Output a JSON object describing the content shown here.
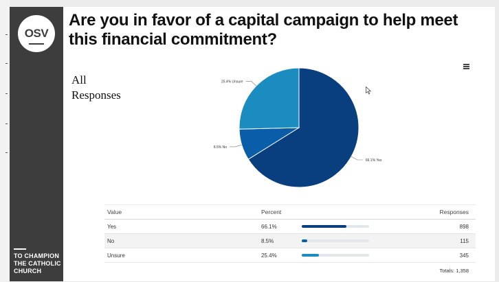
{
  "title": "Are you in favor of a capital campaign to help meet this financial commitment?",
  "subtitle_line1": "All",
  "subtitle_line2": "Responses",
  "logo": {
    "text": "OSV"
  },
  "tagline": [
    "TO CHAMPION",
    "THE CATHOLIC",
    "CHURCH"
  ],
  "icons": {
    "menu": "hamburger-menu-icon",
    "cursor": "mouse-pointer-icon"
  },
  "colors": {
    "sidebar": "#3d3d3d",
    "yes": "#0a3f7f",
    "no": "#0a5da8",
    "unsure": "#1a8cc0",
    "bar_track": "#e3e6ea"
  },
  "chart_data": {
    "type": "pie",
    "slices": [
      {
        "label": "Yes",
        "value": 66.1,
        "data_label": "66.1% Yes",
        "color": "#0a3f7f"
      },
      {
        "label": "No",
        "value": 8.5,
        "data_label": "8.5% No",
        "color": "#0a5da8"
      },
      {
        "label": "Unsure",
        "value": 25.4,
        "data_label": "25.4% Unsure",
        "color": "#1a8cc0"
      }
    ]
  },
  "table": {
    "headers": {
      "value": "Value",
      "percent": "Percent",
      "responses": "Responses"
    },
    "rows": [
      {
        "value": "Yes",
        "percent": "66.1%",
        "fraction": 0.661,
        "responses": "898",
        "color": "#0a3f7f"
      },
      {
        "value": "No",
        "percent": "8.5%",
        "fraction": 0.085,
        "responses": "115",
        "color": "#0a5da8"
      },
      {
        "value": "Unsure",
        "percent": "25.4%",
        "fraction": 0.254,
        "responses": "345",
        "color": "#1a8cc0"
      }
    ],
    "totals": "Totals: 1,358"
  }
}
